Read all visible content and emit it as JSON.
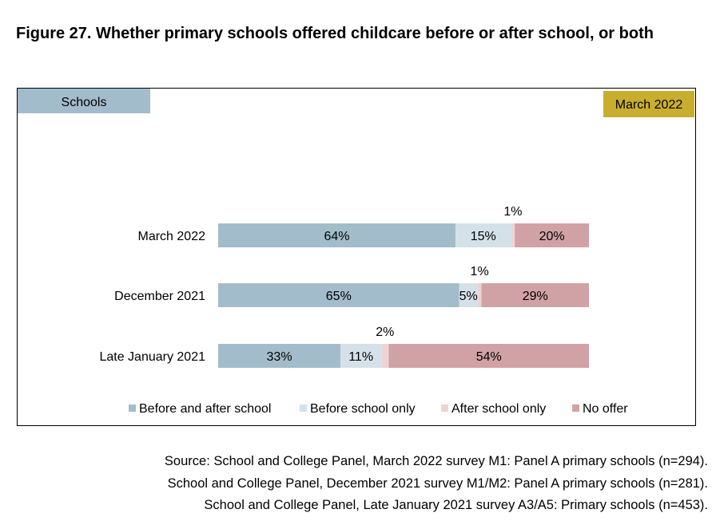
{
  "figure_title": "Figure 27. Whether primary schools offered childcare before or after school, or both",
  "audience_tag": "Schools",
  "period_tag": "March 2022",
  "colors": {
    "audience_tag_bg": "#a3bccb",
    "period_tag_bg": "#c9ae2e"
  },
  "source_lines": [
    "Source: School and College Panel, March 2022 survey M1: Panel A primary schools (n=294).",
    "School and College Panel, December 2021 survey M1/M2: Panel A primary schools (n=281).",
    "School and College Panel, Late January 2021 survey A3/A5: Primary schools (n=453)."
  ],
  "chart_data": {
    "type": "bar",
    "orientation": "horizontal",
    "stacked": true,
    "percent_stacked": true,
    "categories": [
      "March 2022",
      "December 2021",
      "Late January 2021"
    ],
    "series": [
      {
        "name": "Before and after school",
        "values": [
          64,
          65,
          33
        ],
        "labels": [
          "64%",
          "65%",
          "33%"
        ],
        "color": "#a3bccb"
      },
      {
        "name": "Before school only",
        "values": [
          15,
          5,
          11
        ],
        "labels": [
          "15%",
          "5%",
          "11%"
        ],
        "color": "#d5e1e8"
      },
      {
        "name": "After school only",
        "values": [
          1,
          1,
          2
        ],
        "labels": [
          "1%",
          "1%",
          "2%"
        ],
        "color": "#ecd4d6"
      },
      {
        "name": "No offer",
        "values": [
          20,
          29,
          54
        ],
        "labels": [
          "20%",
          "29%",
          "54%"
        ],
        "color": "#d1a2a5"
      }
    ],
    "legend_position": "bottom",
    "grid": false,
    "xlim": [
      0,
      100
    ]
  }
}
